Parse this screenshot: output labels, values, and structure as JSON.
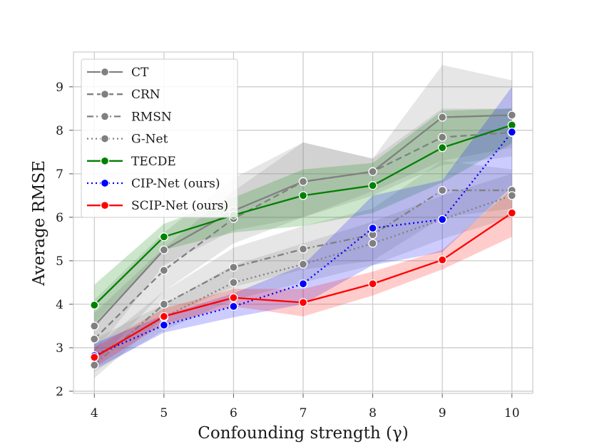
{
  "chart_data": {
    "type": "line",
    "title": "",
    "xlabel": "Confounding strength (γ)",
    "ylabel": "Average RMSE",
    "x": [
      4,
      5,
      6,
      7,
      8,
      9,
      10
    ],
    "xlim": [
      3.7,
      10.3
    ],
    "ylim": [
      1.95,
      9.8
    ],
    "xticks": [
      4,
      5,
      6,
      7,
      8,
      9,
      10
    ],
    "yticks": [
      2,
      3,
      4,
      5,
      6,
      7,
      8,
      9
    ],
    "grid": true,
    "legend_position": "top-left",
    "series": [
      {
        "name": "CT",
        "color": "#808080",
        "dash": "solid",
        "values": [
          3.5,
          5.25,
          6.15,
          6.82,
          7.05,
          8.3,
          8.35
        ],
        "lower": [
          2.9,
          4.9,
          5.7,
          6.0,
          6.6,
          7.3,
          7.6
        ],
        "upper": [
          4.1,
          5.65,
          6.9,
          7.72,
          7.35,
          9.5,
          9.15
        ]
      },
      {
        "name": "CRN",
        "color": "#808080",
        "dash": "dashed",
        "values": [
          3.2,
          4.78,
          5.97,
          6.82,
          7.05,
          7.84,
          7.95
        ],
        "lower": [
          2.6,
          4.3,
          5.4,
          6.0,
          6.5,
          7.2,
          7.4
        ],
        "upper": [
          3.8,
          5.3,
          6.6,
          7.72,
          7.35,
          8.5,
          8.5
        ]
      },
      {
        "name": "RMSN",
        "color": "#808080",
        "dash": "dashdot",
        "values": [
          2.6,
          4.0,
          4.85,
          5.27,
          5.6,
          6.62,
          6.62
        ],
        "lower": [
          2.3,
          3.7,
          4.4,
          4.8,
          5.0,
          6.0,
          6.2
        ],
        "upper": [
          3.0,
          4.3,
          5.3,
          5.8,
          6.2,
          7.3,
          7.1
        ]
      },
      {
        "name": "G-Net",
        "color": "#808080",
        "dash": "dotted",
        "values": [
          2.8,
          3.7,
          4.5,
          4.92,
          5.4,
          5.95,
          6.5
        ],
        "lower": [
          2.45,
          3.4,
          4.1,
          4.5,
          4.9,
          5.5,
          6.0
        ],
        "upper": [
          3.2,
          4.0,
          4.9,
          5.4,
          5.9,
          6.5,
          7.0
        ]
      },
      {
        "name": "TECDE",
        "color": "#008000",
        "dash": "solid",
        "values": [
          3.98,
          5.55,
          6.05,
          6.5,
          6.73,
          7.6,
          8.12
        ],
        "lower": [
          3.55,
          5.25,
          5.65,
          5.8,
          6.1,
          6.8,
          7.7
        ],
        "upper": [
          4.45,
          5.85,
          6.45,
          7.1,
          7.25,
          8.45,
          8.5
        ]
      },
      {
        "name": "CIP-Net (ours)",
        "color": "#0000ff",
        "dash": "dotted",
        "values": [
          2.82,
          3.52,
          3.95,
          4.47,
          5.75,
          5.95,
          7.96
        ],
        "lower": [
          2.5,
          3.35,
          3.7,
          4.0,
          4.9,
          5.2,
          6.7
        ],
        "upper": [
          3.1,
          3.75,
          4.25,
          4.9,
          6.5,
          6.85,
          9.0
        ]
      },
      {
        "name": "SCIP-Net (ours)",
        "color": "#ff0000",
        "dash": "solid",
        "values": [
          2.78,
          3.72,
          4.15,
          4.04,
          4.47,
          5.02,
          6.1
        ],
        "lower": [
          2.55,
          3.55,
          3.95,
          3.72,
          4.2,
          4.8,
          5.55
        ],
        "upper": [
          3.0,
          3.9,
          4.35,
          4.35,
          4.75,
          5.25,
          6.65
        ]
      }
    ]
  }
}
